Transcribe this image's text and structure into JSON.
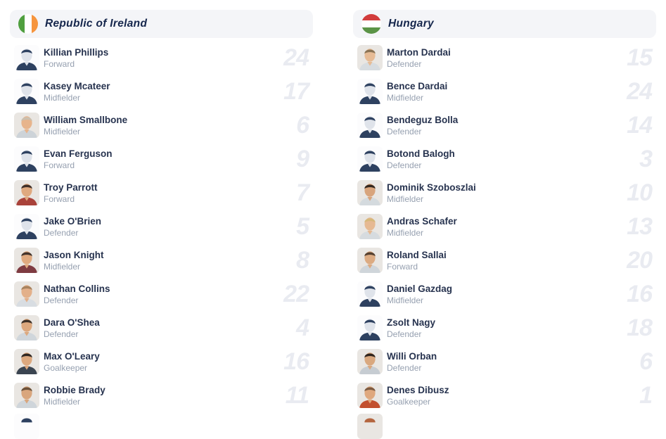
{
  "teams": [
    {
      "name": "Republic of Ireland",
      "flag": {
        "orientation": "vertical",
        "colors": [
          "#4f9f3f",
          "#ffffff",
          "#f6953e"
        ]
      },
      "players": [
        {
          "name": "Killian Phillips",
          "position": "Forward",
          "number": "24",
          "avatar": {
            "variant": "silhouette"
          }
        },
        {
          "name": "Kasey Mcateer",
          "position": "Midfielder",
          "number": "17",
          "avatar": {
            "variant": "silhouette"
          }
        },
        {
          "name": "William Smallbone",
          "position": "Midfielder",
          "number": "6",
          "avatar": {
            "variant": "photo",
            "hair": "#cbbfae",
            "skin": "#e7b48c",
            "shirt": "#cdd3d8"
          }
        },
        {
          "name": "Evan Ferguson",
          "position": "Forward",
          "number": "9",
          "avatar": {
            "variant": "silhouette"
          }
        },
        {
          "name": "Troy Parrott",
          "position": "Forward",
          "number": "7",
          "avatar": {
            "variant": "photo",
            "hair": "#3f2f28",
            "skin": "#dfa97f",
            "shirt": "#a9423a"
          }
        },
        {
          "name": "Jake O'Brien",
          "position": "Defender",
          "number": "5",
          "avatar": {
            "variant": "silhouette"
          }
        },
        {
          "name": "Jason Knight",
          "position": "Midfielder",
          "number": "8",
          "avatar": {
            "variant": "photo",
            "hair": "#42332b",
            "skin": "#dfa97f",
            "shirt": "#7e3b41"
          }
        },
        {
          "name": "Nathan Collins",
          "position": "Defender",
          "number": "22",
          "avatar": {
            "variant": "photo",
            "hair": "#a8835f",
            "skin": "#e3b08a",
            "shirt": "#d8dde2"
          }
        },
        {
          "name": "Dara O'Shea",
          "position": "Defender",
          "number": "4",
          "avatar": {
            "variant": "photo",
            "hair": "#3e3229",
            "skin": "#dca87e",
            "shirt": "#d0d6db"
          }
        },
        {
          "name": "Max O'Leary",
          "position": "Goalkeeper",
          "number": "16",
          "avatar": {
            "variant": "photo",
            "hair": "#2f2722",
            "skin": "#dca87e",
            "shirt": "#3a4450"
          }
        },
        {
          "name": "Robbie Brady",
          "position": "Midfielder",
          "number": "11",
          "avatar": {
            "variant": "photo",
            "hair": "#6b5139",
            "skin": "#d9a67d",
            "shirt": "#cfd5da"
          }
        }
      ],
      "partial_avatar": {
        "variant": "silhouette"
      }
    },
    {
      "name": "Hungary",
      "flag": {
        "orientation": "horizontal",
        "colors": [
          "#d23c3c",
          "#ffffff",
          "#5b9447"
        ]
      },
      "players": [
        {
          "name": "Marton Dardai",
          "position": "Defender",
          "number": "15",
          "avatar": {
            "variant": "photo",
            "hair": "#8a7354",
            "skin": "#e6bb95",
            "shirt": "#d7dce0"
          }
        },
        {
          "name": "Bence Dardai",
          "position": "Midfielder",
          "number": "24",
          "avatar": {
            "variant": "silhouette"
          }
        },
        {
          "name": "Bendeguz Bolla",
          "position": "Defender",
          "number": "14",
          "avatar": {
            "variant": "silhouette"
          }
        },
        {
          "name": "Botond Balogh",
          "position": "Defender",
          "number": "3",
          "avatar": {
            "variant": "silhouette"
          }
        },
        {
          "name": "Dominik Szoboszlai",
          "position": "Midfielder",
          "number": "10",
          "avatar": {
            "variant": "photo",
            "hair": "#33271f",
            "skin": "#d8a47c",
            "shirt": "#d4dade"
          }
        },
        {
          "name": "Andras Schafer",
          "position": "Midfielder",
          "number": "13",
          "avatar": {
            "variant": "photo",
            "hair": "#d6b87a",
            "skin": "#e6b992",
            "shirt": "#d6dbdf"
          }
        },
        {
          "name": "Roland Sallai",
          "position": "Forward",
          "number": "20",
          "avatar": {
            "variant": "photo",
            "hair": "#55402f",
            "skin": "#dcab82",
            "shirt": "#cfd5da"
          }
        },
        {
          "name": "Daniel Gazdag",
          "position": "Midfielder",
          "number": "16",
          "avatar": {
            "variant": "silhouette"
          }
        },
        {
          "name": "Zsolt Nagy",
          "position": "Defender",
          "number": "18",
          "avatar": {
            "variant": "silhouette"
          }
        },
        {
          "name": "Willi Orban",
          "position": "Defender",
          "number": "6",
          "avatar": {
            "variant": "photo",
            "hair": "#2e241d",
            "skin": "#d9a87f",
            "shirt": "#c6ccd2"
          }
        },
        {
          "name": "Denes Dibusz",
          "position": "Goalkeeper",
          "number": "1",
          "avatar": {
            "variant": "photo",
            "hair": "#7d5b41",
            "skin": "#dfa87e",
            "shirt": "#c2502f"
          }
        }
      ],
      "partial_avatar": {
        "variant": "photo",
        "hair": "#b4653f",
        "skin": "#dfa87e",
        "shirt": "#cfd5da"
      }
    }
  ]
}
